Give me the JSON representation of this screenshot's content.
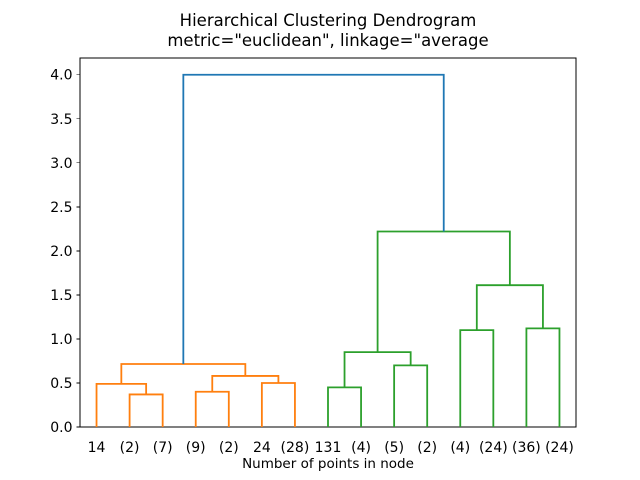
{
  "chart_data": {
    "type": "dendrogram",
    "title": "Hierarchical Clustering Dendrogram",
    "subtitle": "metric=\"euclidean\", linkage=\"average",
    "xlabel": "Number of points in node",
    "leaf_labels": [
      "14",
      "(2)",
      "(7)",
      "(9)",
      "(2)",
      "24",
      "(28)",
      "131",
      "(4)",
      "(5)",
      "(2)",
      "(4)",
      "(24)",
      "(36)",
      "(24)"
    ],
    "ytick_values": [
      0.0,
      0.5,
      1.0,
      1.5,
      2.0,
      2.5,
      3.0,
      3.5,
      4.0
    ],
    "ytick_labels": [
      "0.0",
      "0.5",
      "1.0",
      "1.5",
      "2.0",
      "2.5",
      "3.0",
      "3.5",
      "4.0"
    ],
    "xlim": [
      0,
      150
    ],
    "ylim": [
      0,
      4.19
    ],
    "leaf_start": 5,
    "leaf_step": 10,
    "grid": false,
    "legend": null,
    "colors": {
      "c0": "#1f77b4",
      "c1": "#ff7f0e",
      "c2": "#2ca02c",
      "spine": "#000000",
      "text": "#000000",
      "background": "#ffffff"
    },
    "merges": [
      {
        "id": "A",
        "a": "L1",
        "b": "L2",
        "height": 0.37,
        "color": "c1"
      },
      {
        "id": "B",
        "a": "L0",
        "b": "A",
        "height": 0.49,
        "color": "c1"
      },
      {
        "id": "C",
        "a": "L3",
        "b": "L4",
        "height": 0.4,
        "color": "c1"
      },
      {
        "id": "D",
        "a": "L5",
        "b": "L6",
        "height": 0.5,
        "color": "c1"
      },
      {
        "id": "E",
        "a": "C",
        "b": "D",
        "height": 0.58,
        "color": "c1"
      },
      {
        "id": "F",
        "a": "B",
        "b": "E",
        "height": 0.715,
        "color": "c1"
      },
      {
        "id": "G",
        "a": "L7",
        "b": "L8",
        "height": 0.45,
        "color": "c2"
      },
      {
        "id": "H",
        "a": "L9",
        "b": "L10",
        "height": 0.7,
        "color": "c2"
      },
      {
        "id": "I",
        "a": "G",
        "b": "H",
        "height": 0.85,
        "color": "c2"
      },
      {
        "id": "J",
        "a": "L11",
        "b": "L12",
        "height": 1.1,
        "color": "c2"
      },
      {
        "id": "K",
        "a": "L13",
        "b": "L14",
        "height": 1.12,
        "color": "c2"
      },
      {
        "id": "L",
        "a": "J",
        "b": "K",
        "height": 1.61,
        "color": "c2"
      },
      {
        "id": "M",
        "a": "I",
        "b": "L",
        "height": 2.22,
        "color": "c2"
      },
      {
        "id": "root",
        "a": "F",
        "b": "M",
        "height": 4.0,
        "color": "c0"
      }
    ]
  }
}
